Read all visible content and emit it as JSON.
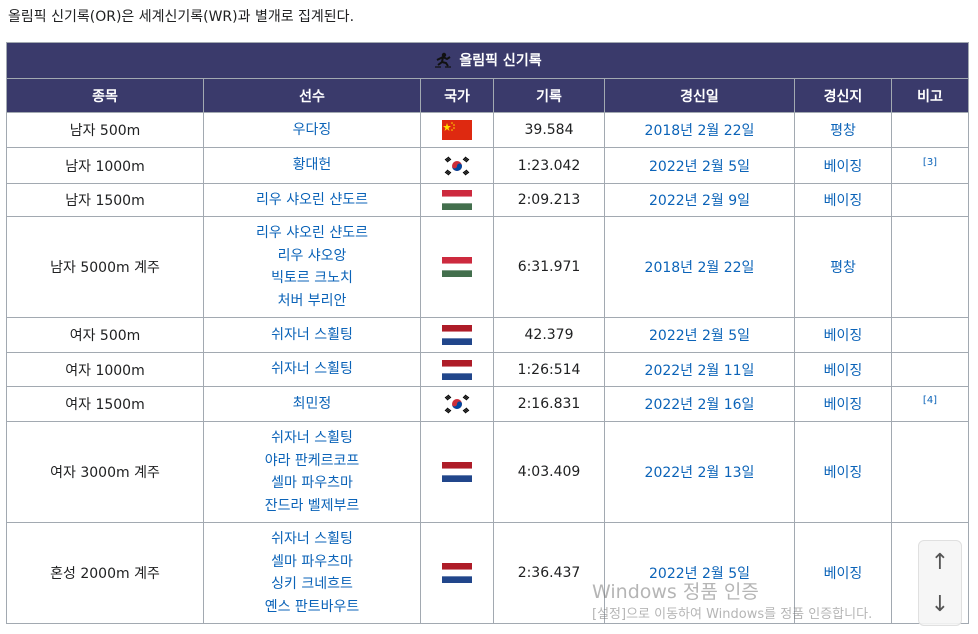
{
  "intro": "올림픽 신기록(OR)은 세계신기록(WR)과 별개로 집계된다.",
  "caption": "올림픽 신기록",
  "headers": [
    "종목",
    "선수",
    "국가",
    "기록",
    "경신일",
    "경신지",
    "비고"
  ],
  "rows": [
    {
      "event": "남자 500m",
      "athletes": [
        "우다징"
      ],
      "flag": "china",
      "record": "39.584",
      "date": "2018년 2월 22일",
      "venue": "평창",
      "note": ""
    },
    {
      "event": "남자 1000m",
      "athletes": [
        "황대헌"
      ],
      "flag": "korea",
      "record": "1:23.042",
      "date": "2022년 2월 5일",
      "venue": "베이징",
      "note": "[3]"
    },
    {
      "event": "남자 1500m",
      "athletes": [
        "리우 샤오린 샨도르"
      ],
      "flag": "hungary",
      "record": "2:09.213",
      "date": "2022년 2월 9일",
      "venue": "베이징",
      "note": ""
    },
    {
      "event": "남자 5000m 계주",
      "athletes": [
        "리우 샤오린 샨도르",
        "리우 샤오앙",
        "빅토르 크노치",
        "처버 부리안"
      ],
      "flag": "hungary",
      "record": "6:31.971",
      "date": "2018년 2월 22일",
      "venue": "평창",
      "note": ""
    },
    {
      "event": "여자 500m",
      "athletes": [
        "쉬자너 스휠팅"
      ],
      "flag": "netherlands",
      "record": "42.379",
      "date": "2022년 2월 5일",
      "venue": "베이징",
      "note": ""
    },
    {
      "event": "여자 1000m",
      "athletes": [
        "쉬자너 스휠팅"
      ],
      "flag": "netherlands",
      "record": "1:26:514",
      "date": "2022년 2월 11일",
      "venue": "베이징",
      "note": ""
    },
    {
      "event": "여자 1500m",
      "athletes": [
        "최민정"
      ],
      "flag": "korea",
      "record": "2:16.831",
      "date": "2022년 2월 16일",
      "venue": "베이징",
      "note": "[4]"
    },
    {
      "event": "여자 3000m 계주",
      "athletes": [
        "쉬자너 스휠팅",
        "야라 판케르코프",
        "셀마 파우츠마",
        "잔드라 벨제부르"
      ],
      "flag": "netherlands",
      "record": "4:03.409",
      "date": "2022년 2월 13일",
      "venue": "베이징",
      "note": ""
    },
    {
      "event": "혼성 2000m 계주",
      "athletes": [
        "쉬자너 스휠팅",
        "셀마 파우츠마",
        "싱키 크네흐트",
        "옌스 판트바우트"
      ],
      "flag": "netherlands",
      "record": "2:36.437",
      "date": "2022년 2월 5일",
      "venue": "베이징",
      "note": ""
    }
  ],
  "watermark": {
    "line1": "Windows 정품 인증",
    "line2": "[설정]으로 이동하여 Windows를 정품 인증합니다."
  },
  "colors": {
    "header_bg": "#3a3a6b",
    "link": "#0b63b8",
    "border": "#a2a9b1"
  }
}
